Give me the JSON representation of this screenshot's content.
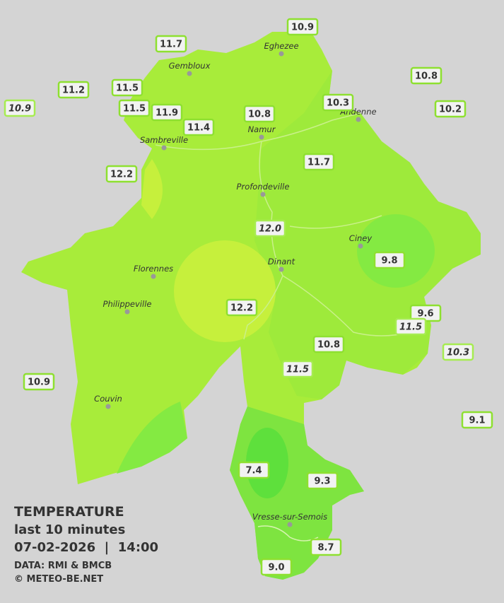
{
  "towns": [
    {
      "name": "Eghezee"
    },
    {
      "name": "Gembloux"
    },
    {
      "name": "Andenne"
    },
    {
      "name": "Namur"
    },
    {
      "name": "Sambreville"
    },
    {
      "name": "Profondeville"
    },
    {
      "name": "Ciney"
    },
    {
      "name": "Dinant"
    },
    {
      "name": "Florennes"
    },
    {
      "name": "Philippeville"
    },
    {
      "name": "Couvin"
    },
    {
      "name": "Vresse-sur-Semois"
    }
  ],
  "stations": [
    {
      "label": "10.9"
    },
    {
      "label": "11.7"
    },
    {
      "label": "10.8"
    },
    {
      "label": "11.2"
    },
    {
      "label": "11.5"
    },
    {
      "label": "10.3"
    },
    {
      "label": "10.9"
    },
    {
      "label": "11.5"
    },
    {
      "label": "11.9"
    },
    {
      "label": "10.8"
    },
    {
      "label": "10.2"
    },
    {
      "label": "11.4"
    },
    {
      "label": "11.7"
    },
    {
      "label": "12.2"
    },
    {
      "label": "12.0"
    },
    {
      "label": "9.8"
    },
    {
      "label": "12.2"
    },
    {
      "label": "9.6"
    },
    {
      "label": "11.5"
    },
    {
      "label": "10.8"
    },
    {
      "label": "10.3"
    },
    {
      "label": "11.5"
    },
    {
      "label": "10.9"
    },
    {
      "label": "9.1"
    },
    {
      "label": "7.4"
    },
    {
      "label": "9.3"
    },
    {
      "label": "8.7"
    },
    {
      "label": "9.0"
    }
  ],
  "legend": {
    "title": "TEMPERATURE",
    "subtitle": "last 10 minutes",
    "datetime": "07-02-2026  |  14:00",
    "source": "DATA: RMI & BMCB",
    "credit": "© METEO-BE.NET"
  }
}
